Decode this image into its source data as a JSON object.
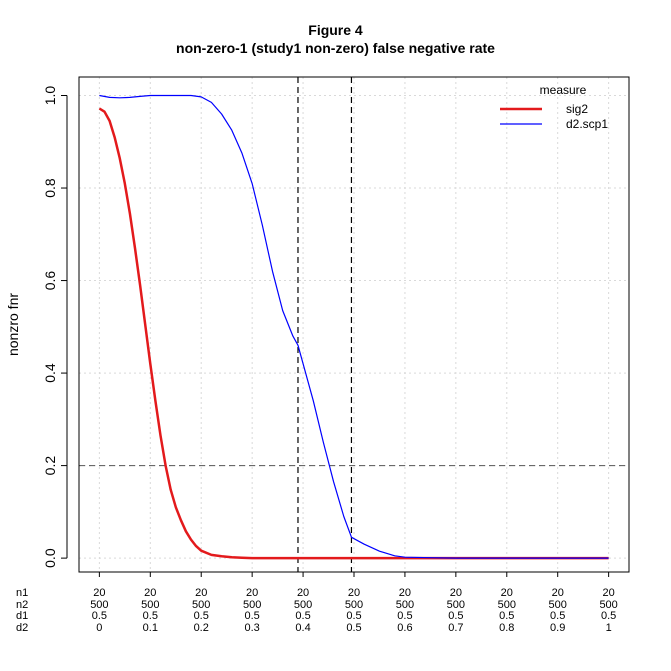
{
  "chart_data": {
    "type": "line",
    "title": "Figure 4",
    "subtitle": "non-zero-1 (study1 non-zero) false negative rate",
    "xlabel": "",
    "ylabel": "nonzro fnr",
    "ylim": [
      -0.03,
      1.04
    ],
    "xlim": [
      -0.04,
      1.04
    ],
    "yticks": [
      0.0,
      0.2,
      0.4,
      0.6,
      0.8,
      1.0
    ],
    "ytick_labels": [
      "0.0",
      "0.2",
      "0.4",
      "0.6",
      "0.8",
      "1.0"
    ],
    "grid": true,
    "x_axis_row_names": [
      "n1",
      "n2",
      "d1",
      "d2"
    ],
    "x_ticks": [
      {
        "x": 0.0,
        "labels": [
          "20",
          "500",
          "0.5",
          "0"
        ]
      },
      {
        "x": 0.1,
        "labels": [
          "20",
          "500",
          "0.5",
          "0.1"
        ]
      },
      {
        "x": 0.2,
        "labels": [
          "20",
          "500",
          "0.5",
          "0.2"
        ]
      },
      {
        "x": 0.3,
        "labels": [
          "20",
          "500",
          "0.5",
          "0.3"
        ]
      },
      {
        "x": 0.4,
        "labels": [
          "20",
          "500",
          "0.5",
          "0.4"
        ]
      },
      {
        "x": 0.5,
        "labels": [
          "20",
          "500",
          "0.5",
          "0.5"
        ]
      },
      {
        "x": 0.6,
        "labels": [
          "20",
          "500",
          "0.5",
          "0.6"
        ]
      },
      {
        "x": 0.7,
        "labels": [
          "20",
          "500",
          "0.5",
          "0.7"
        ]
      },
      {
        "x": 0.8,
        "labels": [
          "20",
          "500",
          "0.5",
          "0.8"
        ]
      },
      {
        "x": 0.9,
        "labels": [
          "20",
          "500",
          "0.5",
          "0.9"
        ]
      },
      {
        "x": 1.0,
        "labels": [
          "20",
          "500",
          "0.5",
          "1"
        ]
      }
    ],
    "hlines": [
      0.2
    ],
    "vlines": [
      0.39,
      0.495
    ],
    "legend": {
      "title": "measure",
      "position": "top-right"
    },
    "series": [
      {
        "name": "sig2",
        "color": "#e31a1c",
        "x": [
          0.0,
          0.01,
          0.02,
          0.03,
          0.04,
          0.05,
          0.06,
          0.07,
          0.08,
          0.09,
          0.1,
          0.11,
          0.12,
          0.13,
          0.14,
          0.15,
          0.16,
          0.17,
          0.18,
          0.19,
          0.2,
          0.22,
          0.24,
          0.26,
          0.28,
          0.3,
          0.35,
          0.4,
          0.5,
          0.6,
          0.7,
          0.8,
          0.9,
          1.0
        ],
        "values": [
          0.972,
          0.965,
          0.945,
          0.91,
          0.865,
          0.81,
          0.745,
          0.67,
          0.59,
          0.505,
          0.42,
          0.34,
          0.265,
          0.2,
          0.148,
          0.11,
          0.082,
          0.058,
          0.04,
          0.026,
          0.016,
          0.007,
          0.004,
          0.002,
          0.001,
          0.0,
          0.0,
          0.0,
          0.0,
          0.0,
          0.0,
          0.0,
          0.0,
          0.0
        ]
      },
      {
        "name": "d2.scp1",
        "color": "#0000ff",
        "x": [
          0.0,
          0.02,
          0.04,
          0.06,
          0.08,
          0.1,
          0.12,
          0.15,
          0.18,
          0.2,
          0.22,
          0.24,
          0.26,
          0.28,
          0.3,
          0.32,
          0.34,
          0.36,
          0.38,
          0.39,
          0.4,
          0.42,
          0.44,
          0.46,
          0.48,
          0.495,
          0.52,
          0.55,
          0.58,
          0.6,
          0.65,
          0.7,
          0.8,
          0.9,
          1.0
        ],
        "values": [
          1.0,
          0.996,
          0.995,
          0.996,
          0.998,
          1.0,
          1.0,
          1.0,
          1.0,
          0.997,
          0.985,
          0.96,
          0.925,
          0.875,
          0.81,
          0.72,
          0.62,
          0.535,
          0.48,
          0.46,
          0.42,
          0.34,
          0.25,
          0.165,
          0.09,
          0.045,
          0.03,
          0.015,
          0.005,
          0.002,
          0.001,
          0.0,
          0.0,
          0.0,
          0.0
        ]
      }
    ]
  }
}
